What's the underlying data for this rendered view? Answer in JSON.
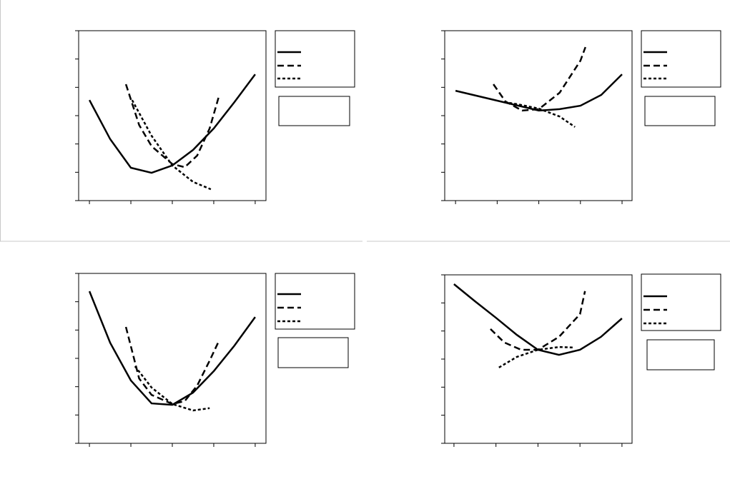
{
  "chart_data": [
    {
      "type": "line",
      "xlim": [
        -0.26,
        4.26
      ],
      "ylim": [
        0,
        6
      ],
      "xticks": [
        0,
        1,
        2,
        3,
        4
      ],
      "yticks": [
        0,
        1,
        2,
        3,
        4,
        5,
        6
      ],
      "series": [
        {
          "color": "#000000",
          "dash": "solid",
          "x": [
            0,
            0.5,
            1,
            1.5,
            2,
            2.5,
            3,
            3.5,
            4
          ],
          "values": [
            3.55,
            2.17,
            1.16,
            0.98,
            1.24,
            1.79,
            2.55,
            3.48,
            4.46
          ]
        },
        {
          "color": "#000000",
          "dash": "long",
          "x": [
            0.88,
            1.2,
            1.5,
            2,
            2.3,
            2.6,
            2.9,
            3.12
          ],
          "values": [
            4.11,
            2.67,
            1.92,
            1.29,
            1.18,
            1.59,
            2.55,
            3.66
          ]
        },
        {
          "color": "#000000",
          "dash": "short",
          "x": [
            1.03,
            1.5,
            2,
            2.5,
            2.93
          ],
          "values": [
            3.55,
            2.29,
            1.24,
            0.66,
            0.4
          ]
        }
      ]
    },
    {
      "type": "line",
      "xlim": [
        -0.26,
        4.24
      ],
      "ylim": [
        0,
        6
      ],
      "xticks": [
        0,
        1,
        2,
        3,
        4
      ],
      "yticks": [
        0,
        1,
        2,
        3,
        4,
        5,
        6
      ],
      "series": [
        {
          "color": "#000000",
          "dash": "solid",
          "x": [
            0,
            1,
            2,
            2.5,
            3,
            3.5,
            4
          ],
          "values": [
            3.88,
            3.53,
            3.18,
            3.23,
            3.35,
            3.73,
            4.46
          ]
        },
        {
          "color": "#000000",
          "dash": "long",
          "x": [
            0.91,
            1.2,
            1.6,
            2,
            2.5,
            3,
            3.12
          ],
          "values": [
            4.11,
            3.5,
            3.18,
            3.23,
            3.81,
            4.94,
            5.42
          ]
        },
        {
          "color": "#000000",
          "dash": "short",
          "x": [
            1.17,
            1.5,
            2,
            2.5,
            2.87
          ],
          "values": [
            3.48,
            3.4,
            3.25,
            2.97,
            2.6
          ]
        }
      ]
    },
    {
      "type": "line",
      "xlim": [
        -0.26,
        4.26
      ],
      "ylim": [
        0,
        6
      ],
      "xticks": [
        0,
        1,
        2,
        3,
        4
      ],
      "yticks": [
        0,
        1,
        2,
        3,
        4,
        5,
        6
      ],
      "series": [
        {
          "color": "#000000",
          "dash": "solid",
          "x": [
            0,
            0.5,
            1,
            1.5,
            2,
            2.5,
            3,
            3.5,
            4
          ],
          "values": [
            5.37,
            3.55,
            2.22,
            1.41,
            1.36,
            1.79,
            2.55,
            3.45,
            4.46
          ]
        },
        {
          "color": "#000000",
          "dash": "long",
          "x": [
            0.88,
            1.2,
            1.5,
            2,
            2.3,
            2.6,
            2.9,
            3.12
          ],
          "values": [
            4.11,
            2.29,
            1.71,
            1.39,
            1.49,
            2.04,
            2.92,
            3.6
          ]
        },
        {
          "color": "#000000",
          "dash": "short",
          "x": [
            1.1,
            1.5,
            2,
            2.5,
            2.9
          ],
          "values": [
            2.72,
            1.97,
            1.39,
            1.16,
            1.24
          ]
        }
      ]
    },
    {
      "type": "line",
      "xlim": [
        -0.22,
        4.24
      ],
      "ylim": [
        0,
        6
      ],
      "xticks": [
        0,
        1,
        2,
        3,
        4
      ],
      "yticks": [
        0,
        1,
        2,
        3,
        4,
        5,
        6
      ],
      "series": [
        {
          "color": "#000000",
          "dash": "solid",
          "x": [
            0,
            0.5,
            1,
            1.5,
            2,
            2.5,
            3,
            3.5,
            4
          ],
          "values": [
            5.67,
            5.06,
            4.47,
            3.86,
            3.33,
            3.15,
            3.33,
            3.79,
            4.45
          ]
        },
        {
          "color": "#000000",
          "dash": "long",
          "x": [
            0.87,
            1.2,
            1.6,
            2,
            2.5,
            3,
            3.12
          ],
          "values": [
            4.07,
            3.59,
            3.33,
            3.33,
            3.79,
            4.6,
            5.42
          ]
        },
        {
          "color": "#000000",
          "dash": "short",
          "x": [
            1.07,
            1.5,
            2,
            2.5,
            2.87
          ],
          "values": [
            2.7,
            3.08,
            3.33,
            3.43,
            3.41
          ]
        }
      ]
    }
  ]
}
